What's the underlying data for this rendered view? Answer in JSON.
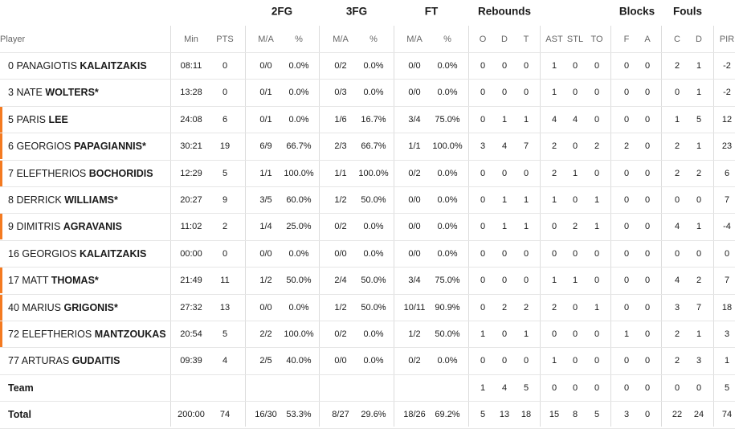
{
  "groups": [
    "2FG",
    "3FG",
    "FT",
    "Rebounds",
    "Blocks",
    "Fouls"
  ],
  "player_header": "Player",
  "columns": [
    "Min",
    "PTS",
    "M/A",
    "%",
    "M/A",
    "%",
    "M/A",
    "%",
    "O",
    "D",
    "T",
    "AST",
    "STL",
    "TO",
    "F",
    "A",
    "C",
    "D",
    "PIR"
  ],
  "players": [
    {
      "number": "0",
      "first": "PANAGIOTIS",
      "last": "KALAITZAKIS",
      "highlight": false,
      "cells": [
        "08:11",
        "0",
        "0/0",
        "0.0%",
        "0/2",
        "0.0%",
        "0/0",
        "0.0%",
        "0",
        "0",
        "0",
        "1",
        "0",
        "0",
        "0",
        "0",
        "2",
        "1",
        "-2"
      ]
    },
    {
      "number": "3",
      "first": "NATE",
      "last": "WOLTERS*",
      "highlight": false,
      "cells": [
        "13:28",
        "0",
        "0/1",
        "0.0%",
        "0/3",
        "0.0%",
        "0/0",
        "0.0%",
        "0",
        "0",
        "0",
        "1",
        "0",
        "0",
        "0",
        "0",
        "0",
        "1",
        "-2"
      ]
    },
    {
      "number": "5",
      "first": "PARIS",
      "last": "LEE",
      "highlight": true,
      "cells": [
        "24:08",
        "6",
        "0/1",
        "0.0%",
        "1/6",
        "16.7%",
        "3/4",
        "75.0%",
        "0",
        "1",
        "1",
        "4",
        "4",
        "0",
        "0",
        "0",
        "1",
        "5",
        "12"
      ]
    },
    {
      "number": "6",
      "first": "GEORGIOS",
      "last": "PAPAGIANNIS*",
      "highlight": true,
      "cells": [
        "30:21",
        "19",
        "6/9",
        "66.7%",
        "2/3",
        "66.7%",
        "1/1",
        "100.0%",
        "3",
        "4",
        "7",
        "2",
        "0",
        "2",
        "2",
        "0",
        "2",
        "1",
        "23"
      ]
    },
    {
      "number": "7",
      "first": "ELEFTHERIOS",
      "last": "BOCHORIDIS",
      "highlight": true,
      "cells": [
        "12:29",
        "5",
        "1/1",
        "100.0%",
        "1/1",
        "100.0%",
        "0/2",
        "0.0%",
        "0",
        "0",
        "0",
        "2",
        "1",
        "0",
        "0",
        "0",
        "2",
        "2",
        "6"
      ]
    },
    {
      "number": "8",
      "first": "DERRICK",
      "last": "WILLIAMS*",
      "highlight": false,
      "cells": [
        "20:27",
        "9",
        "3/5",
        "60.0%",
        "1/2",
        "50.0%",
        "0/0",
        "0.0%",
        "0",
        "1",
        "1",
        "1",
        "0",
        "1",
        "0",
        "0",
        "0",
        "0",
        "7"
      ]
    },
    {
      "number": "9",
      "first": "DIMITRIS",
      "last": "AGRAVANIS",
      "highlight": true,
      "cells": [
        "11:02",
        "2",
        "1/4",
        "25.0%",
        "0/2",
        "0.0%",
        "0/0",
        "0.0%",
        "0",
        "1",
        "1",
        "0",
        "2",
        "1",
        "0",
        "0",
        "4",
        "1",
        "-4"
      ]
    },
    {
      "number": "16",
      "first": "GEORGIOS",
      "last": "KALAITZAKIS",
      "highlight": false,
      "cells": [
        "00:00",
        "0",
        "0/0",
        "0.0%",
        "0/0",
        "0.0%",
        "0/0",
        "0.0%",
        "0",
        "0",
        "0",
        "0",
        "0",
        "0",
        "0",
        "0",
        "0",
        "0",
        "0"
      ]
    },
    {
      "number": "17",
      "first": "MATT",
      "last": "THOMAS*",
      "highlight": true,
      "cells": [
        "21:49",
        "11",
        "1/2",
        "50.0%",
        "2/4",
        "50.0%",
        "3/4",
        "75.0%",
        "0",
        "0",
        "0",
        "1",
        "1",
        "0",
        "0",
        "0",
        "4",
        "2",
        "7"
      ]
    },
    {
      "number": "40",
      "first": "MARIUS",
      "last": "GRIGONIS*",
      "highlight": true,
      "cells": [
        "27:32",
        "13",
        "0/0",
        "0.0%",
        "1/2",
        "50.0%",
        "10/11",
        "90.9%",
        "0",
        "2",
        "2",
        "2",
        "0",
        "1",
        "0",
        "0",
        "3",
        "7",
        "18"
      ]
    },
    {
      "number": "72",
      "first": "ELEFTHERIOS",
      "last": "MANTZOUKAS",
      "highlight": true,
      "cells": [
        "20:54",
        "5",
        "2/2",
        "100.0%",
        "0/2",
        "0.0%",
        "1/2",
        "50.0%",
        "1",
        "0",
        "1",
        "0",
        "0",
        "0",
        "1",
        "0",
        "2",
        "1",
        "3"
      ]
    },
    {
      "number": "77",
      "first": "ARTURAS",
      "last": "GUDAITIS",
      "highlight": false,
      "cells": [
        "09:39",
        "4",
        "2/5",
        "40.0%",
        "0/0",
        "0.0%",
        "0/2",
        "0.0%",
        "0",
        "0",
        "0",
        "1",
        "0",
        "0",
        "0",
        "0",
        "2",
        "3",
        "1"
      ]
    }
  ],
  "team": {
    "label": "Team",
    "cells": [
      null,
      null,
      null,
      null,
      null,
      null,
      null,
      null,
      "1",
      "4",
      "5",
      "0",
      "0",
      "0",
      "0",
      "0",
      "0",
      "0",
      "5"
    ]
  },
  "total": {
    "label": "Total",
    "cells": [
      "200:00",
      "74",
      "16/30",
      "53.3%",
      "8/27",
      "29.6%",
      "18/26",
      "69.2%",
      "5",
      "13",
      "18",
      "15",
      "8",
      "5",
      "3",
      "0",
      "22",
      "24",
      "74"
    ]
  }
}
